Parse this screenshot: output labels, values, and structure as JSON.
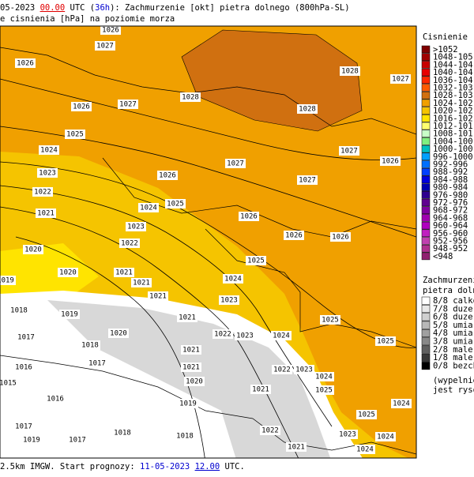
{
  "header": {
    "line1": [
      "05-2023 ",
      "00.00",
      " UTC (",
      "36h",
      "): Zachmurzenie [okt] pietra dolnego (800hPa-SL)"
    ],
    "line2": "e cisnienia [hPa] na poziomie morza"
  },
  "map": {
    "isobar_labels": [
      "1026",
      "1027",
      "1026",
      "1028",
      "1027",
      "1026",
      "1027",
      "1028",
      "1028",
      "1025",
      "1024",
      "1027",
      "1027",
      "1026",
      "1023",
      "1026",
      "1027",
      "1022",
      "1024",
      "1025",
      "1021",
      "1023",
      "1026",
      "1026",
      "1026",
      "1022",
      "1020",
      "1025",
      "1020",
      "1021",
      "1024",
      "1019",
      "1021",
      "1021",
      "1023",
      "1018",
      "1019",
      "1021",
      "1025",
      "1017",
      "1020",
      "1022",
      "1023",
      "1024",
      "1025",
      "1018",
      "1021",
      "1017",
      "1022",
      "1023",
      "1024",
      "1016",
      "1021",
      "1015",
      "1020",
      "1021",
      "1025",
      "1016",
      "1024",
      "1019",
      "1025",
      "1017",
      "1018",
      "1018",
      "1022",
      "1023",
      "1024",
      "1017",
      "1019",
      "1021",
      "1024"
    ]
  },
  "legend_pressure": {
    "title": "Cisnienie [hP",
    "items": [
      {
        "label": ">1052",
        "color": "#800000"
      },
      {
        "label": "1048-105",
        "color": "#a00000"
      },
      {
        "label": "1044-104",
        "color": "#c80000"
      },
      {
        "label": "1040-104",
        "color": "#e80000"
      },
      {
        "label": "1036-104",
        "color": "#ff2800"
      },
      {
        "label": "1032-103",
        "color": "#ff5a00"
      },
      {
        "label": "1028-103",
        "color": "#d07010"
      },
      {
        "label": "1024-102",
        "color": "#f0a000"
      },
      {
        "label": "1020-102",
        "color": "#f5c400"
      },
      {
        "label": "1016-102",
        "color": "#ffe400"
      },
      {
        "label": "1012-101",
        "color": "#ffff70"
      },
      {
        "label": "1008-101",
        "color": "#c8ffc8"
      },
      {
        "label": "1004-100",
        "color": "#80f080"
      },
      {
        "label": "1000-100",
        "color": "#00c0c0"
      },
      {
        "label": "996-1000",
        "color": "#00a0ff"
      },
      {
        "label": "992-996",
        "color": "#0070ff"
      },
      {
        "label": "988-992",
        "color": "#0040ff"
      },
      {
        "label": "984-988",
        "color": "#0000e0"
      },
      {
        "label": "980-984",
        "color": "#0000b0"
      },
      {
        "label": "976-980",
        "color": "#300090"
      },
      {
        "label": "972-976",
        "color": "#600090"
      },
      {
        "label": "968-972",
        "color": "#8000a0"
      },
      {
        "label": "964-968",
        "color": "#a000b0"
      },
      {
        "label": "960-964",
        "color": "#b000c0"
      },
      {
        "label": "956-960",
        "color": "#c020c0"
      },
      {
        "label": "952-956",
        "color": "#c040b0"
      },
      {
        "label": "948-952",
        "color": "#b03090"
      },
      {
        "label": "<948",
        "color": "#902070"
      }
    ]
  },
  "legend_clouds": {
    "title": [
      "Zachmurzenie",
      "pietra dolneg"
    ],
    "items": [
      {
        "label": "8/8 calkow",
        "color": "#ffffff"
      },
      {
        "label": "7/8 duze",
        "color": "#e8e8e8"
      },
      {
        "label": "6/8 duze",
        "color": "#d0d0d0"
      },
      {
        "label": "5/8 umiar",
        "color": "#b8b8b8"
      },
      {
        "label": "4/8 umiar",
        "color": "#a0a0a0"
      },
      {
        "label": "3/8 umiar",
        "color": "#888888"
      },
      {
        "label": "2/8 male",
        "color": "#606060"
      },
      {
        "label": "1/8 male",
        "color": "#383838"
      },
      {
        "label": "0/8 bezch",
        "color": "#000000"
      }
    ],
    "note": [
      "(wypelnienie",
      "jest rysowa"
    ]
  },
  "footer": [
    "2.5km IMGW. Start prognozy: ",
    "11-05-2023",
    " ",
    "12.00",
    " UTC."
  ]
}
